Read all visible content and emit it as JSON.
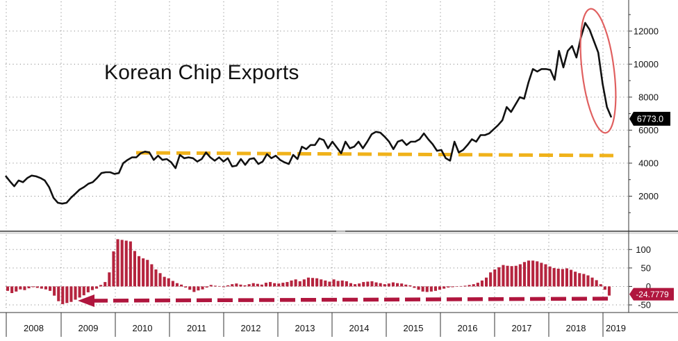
{
  "chart_data": [
    {
      "type": "line",
      "title": "Korean Chip Exports",
      "xlabel": "",
      "ylabel": "",
      "ylim": [
        0,
        13800
      ],
      "yticks": [
        2000,
        4000,
        6000,
        8000,
        10000,
        12000
      ],
      "ytick_labels": [
        "2000",
        "4000",
        "6000",
        "8000",
        "10000",
        "12000"
      ],
      "grid": true,
      "last_value_label": "6773.0",
      "series": [
        {
          "values": [
            3230,
            2900,
            2600,
            2950,
            2850,
            3100,
            3250,
            3200,
            3100,
            2950,
            2550,
            1900,
            1600,
            1550,
            1600,
            1900,
            2150,
            2400,
            2550,
            2750,
            2850,
            3100,
            3400,
            3450,
            3450,
            3350,
            3400,
            4000,
            4200,
            4350,
            4350,
            4600,
            4700,
            4650,
            4200,
            4450,
            4200,
            4250,
            4050,
            3700,
            4500,
            4300,
            4350,
            4300,
            4100,
            4250,
            4650,
            4350,
            4150,
            4350,
            4100,
            4300,
            3800,
            3850,
            4250,
            3900,
            4250,
            4300,
            3950,
            4100,
            4550,
            4300,
            4450,
            4200,
            4050,
            3950,
            4500,
            4250,
            5000,
            4850,
            5100,
            5100,
            5500,
            5400,
            4900,
            5300,
            4950,
            4600,
            5300,
            4900,
            5000,
            5300,
            4900,
            5300,
            5750,
            5900,
            5850,
            5600,
            5300,
            4850,
            5300,
            5400,
            5100,
            5300,
            5300,
            5450,
            5800,
            5450,
            5150,
            4750,
            4800,
            4300,
            4150,
            5300,
            4650,
            4800,
            5100,
            5450,
            5300,
            5700,
            5700,
            5800,
            6050,
            6300,
            6600,
            7400,
            7100,
            7550,
            8000,
            7900,
            8900,
            9700,
            9550,
            9700,
            9700,
            9650,
            9050,
            10800,
            9800,
            10800,
            11100,
            10400,
            11600,
            12500,
            12100,
            11400,
            10700,
            8800,
            7400,
            6773
          ]
        }
      ]
    },
    {
      "type": "bar",
      "title": "",
      "ylim": [
        -65,
        140
      ],
      "yticks": [
        -50,
        0,
        50,
        100
      ],
      "ytick_labels": [
        "-50",
        "0",
        "50",
        "100"
      ],
      "grid": true,
      "last_value_label": "-24.7779",
      "series": [
        {
          "values": [
            -12,
            -18,
            -14,
            -8,
            -10,
            -5,
            -2,
            -4,
            -6,
            -8,
            -12,
            -25,
            -40,
            -48,
            -45,
            -42,
            -36,
            -30,
            -24,
            -16,
            -10,
            -6,
            4,
            12,
            38,
            95,
            128,
            126,
            124,
            122,
            96,
            82,
            76,
            72,
            60,
            46,
            36,
            26,
            22,
            15,
            9,
            5,
            -3,
            -9,
            -15,
            -11,
            -8,
            -3,
            4,
            2,
            1,
            -2,
            3,
            6,
            8,
            5,
            3,
            6,
            9,
            7,
            5,
            10,
            12,
            9,
            8,
            10,
            12,
            16,
            19,
            14,
            19,
            24,
            23,
            22,
            19,
            16,
            13,
            19,
            15,
            16,
            14,
            9,
            6,
            8,
            12,
            13,
            14,
            11,
            9,
            6,
            8,
            11,
            9,
            8,
            5,
            3,
            -4,
            -9,
            -14,
            -15,
            -14,
            -12,
            -9,
            -6,
            -3,
            -2,
            0,
            1,
            2,
            4,
            6,
            10,
            16,
            24,
            38,
            46,
            52,
            58,
            56,
            55,
            56,
            60,
            66,
            70,
            70,
            68,
            64,
            60,
            54,
            50,
            48,
            47,
            49,
            45,
            40,
            36,
            34,
            30,
            24,
            17,
            6,
            -9,
            -24.7779
          ]
        }
      ]
    }
  ],
  "x_axis": {
    "years": [
      "2008",
      "2009",
      "2010",
      "2011",
      "2012",
      "2013",
      "2014",
      "2015",
      "2016",
      "2017",
      "2018",
      "2019"
    ]
  },
  "colors": {
    "line": "#111111",
    "bars": "#b5243e",
    "trend_dash": "#f0b21a",
    "arrow": "#b0163e",
    "ellipse": "#e06060"
  }
}
